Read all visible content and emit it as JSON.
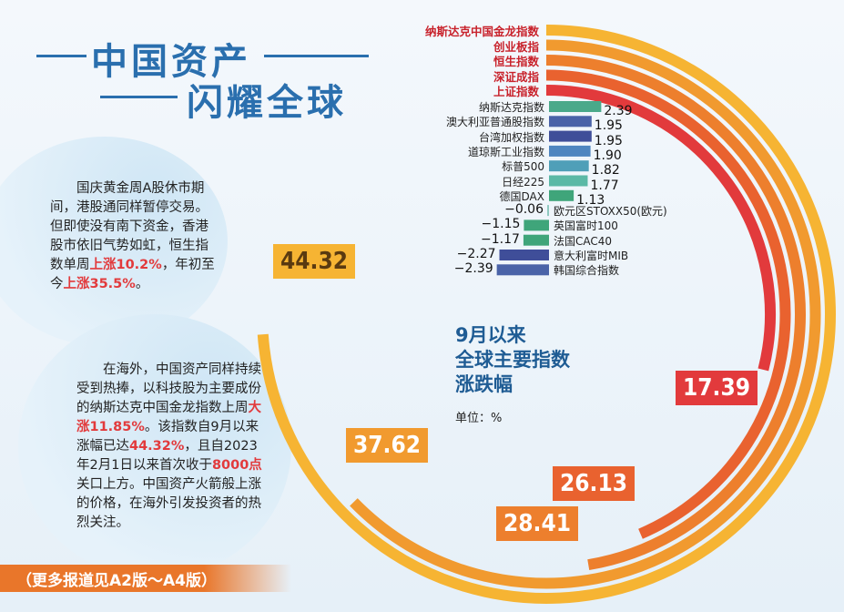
{
  "title": {
    "line1": "中国资产",
    "line2": "闪耀全球"
  },
  "para1": {
    "text_a": "国庆黄金周A股休市期间，港股通同样暂停交易。但即使没有南下资金，香港股市依旧气势如虹，恒生指数单周",
    "hl1": "上涨10.2%",
    "text_b": "，年初至今",
    "hl2": "上涨35.5%",
    "text_c": "。"
  },
  "para2": {
    "text_a": "在海外，中国资产同样持续受到热捧，以科技股为主要成份的纳斯达克中国金龙指数上周",
    "hl1": "大涨11.85%",
    "text_b": "。该指数自9月以来涨幅已达",
    "hl2": "44.32%",
    "text_c": "，且自2023年2月1日以来首次收于",
    "hl3": "8000点",
    "text_d": "关口上方。中国资产火箭般上涨的价格，在海外引发投资者的热烈关注。"
  },
  "footer": "（更多报道见A2版～A4版）",
  "chart_data": {
    "type": "bar",
    "title": "9月以来全球主要指数涨跌幅",
    "title_lines": [
      "9月以来",
      "全球主要指数",
      "涨跌幅"
    ],
    "unit": "单位：%",
    "major": [
      {
        "name": "纳斯达克中国金龙指数",
        "value": 44.32,
        "label": "44.32",
        "color": "#f6b433"
      },
      {
        "name": "创业板指",
        "value": 37.62,
        "label": "37.62",
        "color": "#f19a2f"
      },
      {
        "name": "恒生指数",
        "value": 28.41,
        "label": "28.41",
        "color": "#ed7f2d"
      },
      {
        "name": "深证成指",
        "value": 26.13,
        "label": "26.13",
        "color": "#e9622f"
      },
      {
        "name": "上证指数",
        "value": 17.39,
        "label": "17.39",
        "color": "#e23a3c"
      }
    ],
    "minor": [
      {
        "name": "纳斯达克指数",
        "value": 2.39,
        "label": "2.39",
        "color": "#4aa98a"
      },
      {
        "name": "澳大利亚普通股指数",
        "value": 1.95,
        "label": "1.95",
        "color": "#4a63a8"
      },
      {
        "name": "台湾加权指数",
        "value": 1.95,
        "label": "1.95",
        "color": "#3f4e99"
      },
      {
        "name": "道琼斯工业指数",
        "value": 1.9,
        "label": "1.90",
        "color": "#4f86c0"
      },
      {
        "name": "标普500",
        "value": 1.82,
        "label": "1.82",
        "color": "#4f9fb8"
      },
      {
        "name": "日经225",
        "value": 1.77,
        "label": "1.77",
        "color": "#5bb9a6"
      },
      {
        "name": "德国DAX",
        "value": 1.13,
        "label": "1.13",
        "color": "#3fa57a"
      },
      {
        "name": "欧元区STOXX50(欧元)",
        "value": -0.06,
        "label": "−0.06",
        "color": "#8fc9c0"
      },
      {
        "name": "英国富时100",
        "value": -1.15,
        "label": "−1.15",
        "color": "#3fa57a"
      },
      {
        "name": "法国CAC40",
        "value": -1.17,
        "label": "−1.17",
        "color": "#3fa57a"
      },
      {
        "name": "意大利富时MIB",
        "value": -2.27,
        "label": "−2.27",
        "color": "#3f4e99"
      },
      {
        "name": "韩国综合指数",
        "value": -2.39,
        "label": "−2.39",
        "color": "#4a63a8"
      }
    ]
  }
}
